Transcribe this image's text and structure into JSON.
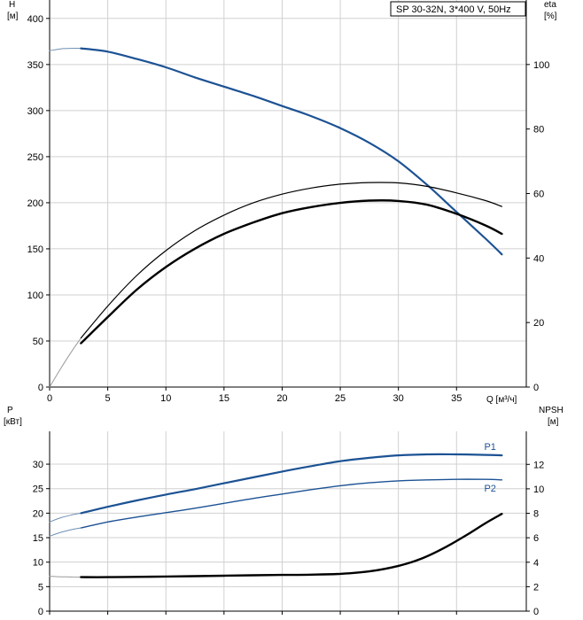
{
  "legend": "SP 30-32N, 3*400 V, 50Hz",
  "chart_data": [
    {
      "type": "line",
      "panel": "top",
      "y_left_label": [
        "H",
        "[м]"
      ],
      "y_right_label": [
        "eta",
        "[%]"
      ],
      "x_label": "Q [м³/ч]",
      "xlim": [
        0,
        41
      ],
      "ylim_left": [
        0,
        420
      ],
      "ylim_right": [
        0,
        120
      ],
      "x_ticks": [
        0,
        5,
        10,
        15,
        20,
        25,
        30,
        35
      ],
      "y_left_ticks": [
        0,
        50,
        100,
        150,
        200,
        250,
        300,
        350,
        400
      ],
      "y_right_ticks": [
        0,
        20,
        40,
        60,
        80,
        100
      ],
      "grid": true,
      "series": [
        {
          "axis": "left",
          "color": "#6d8fb3",
          "width": 1,
          "x": [
            0,
            1,
            2,
            2.7
          ],
          "y": [
            365,
            367,
            367.5,
            367.5
          ]
        },
        {
          "axis": "left",
          "color": "#1c5294",
          "width": 2.2,
          "x": [
            2.7,
            5,
            7.5,
            10,
            12.5,
            15,
            17.5,
            20,
            22.5,
            25,
            27.5,
            30,
            32.5,
            35,
            37.5,
            38.9
          ],
          "y": [
            367.5,
            364,
            356,
            347,
            336,
            326,
            316,
            305,
            294,
            281,
            265,
            245,
            219,
            190,
            161,
            144
          ]
        },
        {
          "axis": "right",
          "color": "#9a9a9a",
          "width": 1,
          "x": [
            0,
            1,
            2,
            2.7
          ],
          "y": [
            0,
            6,
            11.6,
            15.2
          ]
        },
        {
          "axis": "right",
          "color": "#000000",
          "width": 1.2,
          "x": [
            2.7,
            5,
            7.5,
            10,
            12.5,
            15,
            17.5,
            20,
            22.5,
            25,
            27.5,
            30,
            32.5,
            35,
            37.5,
            38.9
          ],
          "y": [
            15.2,
            25.1,
            34.6,
            42.3,
            48.5,
            53.3,
            57.1,
            59.8,
            61.7,
            62.9,
            63.4,
            63.3,
            62.2,
            60.2,
            57.8,
            56.0
          ]
        },
        {
          "axis": "right",
          "color": "#000000",
          "width": 2.4,
          "x": [
            2.7,
            5,
            7.5,
            10,
            12.5,
            15,
            17.5,
            20,
            22.5,
            25,
            27.5,
            30,
            32.5,
            35,
            37.5,
            38.9
          ],
          "y": [
            13.6,
            21.7,
            30.2,
            37.2,
            42.9,
            47.5,
            51.0,
            53.9,
            55.8,
            57.1,
            57.8,
            57.7,
            56.5,
            53.7,
            50.1,
            47.5
          ]
        }
      ]
    },
    {
      "type": "line",
      "panel": "bottom",
      "y_left_label": [
        "P",
        "[кВт]"
      ],
      "y_right_label": [
        "NPSH",
        "[м]"
      ],
      "xlim": [
        0,
        41
      ],
      "ylim_left": [
        0,
        36.7
      ],
      "ylim_right": [
        0,
        14.7
      ],
      "y_left_ticks": [
        0,
        5,
        10,
        15,
        20,
        25,
        30
      ],
      "y_right_ticks": [
        0,
        2,
        4,
        6,
        8,
        10,
        12
      ],
      "grid": true,
      "series": [
        {
          "axis": "left",
          "color": "#6d8fb3",
          "width": 1,
          "x": [
            0,
            1,
            2,
            2.7
          ],
          "y": [
            18.2,
            19.1,
            19.7,
            20.0
          ]
        },
        {
          "axis": "left",
          "color": "#1c5294",
          "width": 2.2,
          "name": "P1",
          "x": [
            2.7,
            5,
            7.5,
            10,
            12.5,
            15,
            17.5,
            20,
            22.5,
            25,
            27.5,
            30,
            32.5,
            35,
            37.5,
            38.9
          ],
          "y": [
            20.0,
            21.3,
            22.6,
            23.8,
            24.9,
            26.1,
            27.3,
            28.5,
            29.6,
            30.6,
            31.3,
            31.8,
            32.0,
            32.0,
            31.9,
            31.8
          ]
        },
        {
          "axis": "left",
          "color": "#6d8fb3",
          "width": 1,
          "x": [
            0,
            1,
            2,
            2.7
          ],
          "y": [
            15.3,
            16.1,
            16.7,
            17.0
          ]
        },
        {
          "axis": "left",
          "color": "#1c5294",
          "width": 1.4,
          "name": "P2",
          "x": [
            2.7,
            5,
            7.5,
            10,
            12.5,
            15,
            17.5,
            20,
            22.5,
            25,
            27.5,
            30,
            32.5,
            35,
            37.5,
            38.9
          ],
          "y": [
            17.0,
            18.2,
            19.2,
            20.1,
            21.0,
            22.0,
            23.0,
            23.9,
            24.8,
            25.6,
            26.2,
            26.6,
            26.8,
            26.9,
            26.9,
            26.8
          ]
        },
        {
          "axis": "right",
          "color": "#9a9a9a",
          "width": 1,
          "x": [
            0,
            1,
            2,
            2.7
          ],
          "y": [
            2.85,
            2.81,
            2.79,
            2.78
          ]
        },
        {
          "axis": "right",
          "color": "#000000",
          "width": 2.4,
          "x": [
            2.7,
            5,
            7.5,
            10,
            12.5,
            15,
            17.5,
            20,
            22.5,
            25,
            27.5,
            30,
            32,
            34,
            36,
            37.5,
            38.9
          ],
          "y": [
            2.78,
            2.78,
            2.8,
            2.83,
            2.86,
            2.9,
            2.93,
            2.96,
            2.98,
            3.05,
            3.25,
            3.7,
            4.3,
            5.2,
            6.3,
            7.2,
            7.95
          ]
        }
      ]
    }
  ]
}
